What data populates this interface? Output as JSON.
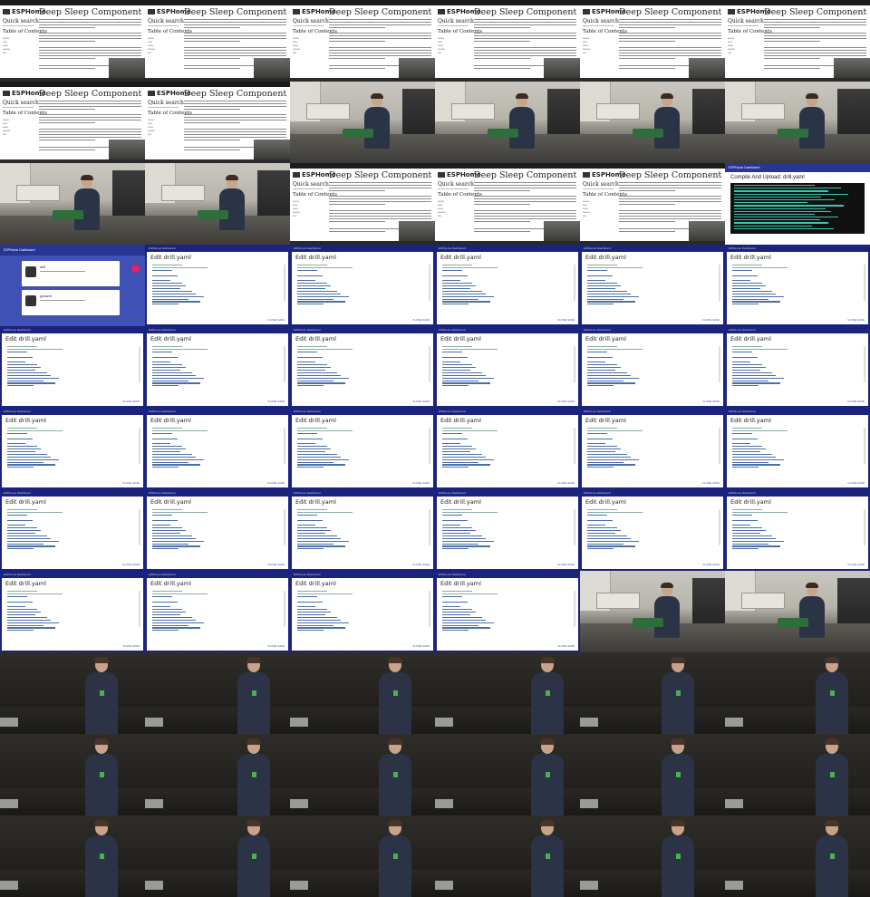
{
  "grid": {
    "columns": 6,
    "rows": 11
  },
  "labels": {
    "esphome_logo": "ESPHome",
    "docs_title": "Deep Sleep Component",
    "quick_search": "Quick search",
    "table_of_contents": "Table of Contents",
    "compile_title": "Compile And Upload: drill.yaml",
    "editor_title": "Edit drill.yaml",
    "dashboard_title": "ESPHome Dashboard",
    "device_1": "drill",
    "device_2": "ppower",
    "editor_buttons": "CLOSE   SAVE"
  },
  "tiles": [
    "docs",
    "docs",
    "docs",
    "docs",
    "docs",
    "docs",
    "docs",
    "docs",
    "room",
    "room",
    "room",
    "room",
    "room",
    "room",
    "docs",
    "docs",
    "docs",
    "compile",
    "dashboard",
    "edit",
    "edit",
    "edit",
    "edit",
    "edit",
    "edit",
    "edit",
    "edit",
    "edit",
    "edit",
    "edit",
    "edit",
    "edit",
    "edit",
    "edit",
    "edit",
    "edit",
    "edit",
    "edit",
    "edit",
    "edit",
    "edit",
    "edit",
    "edit",
    "edit",
    "edit",
    "edit",
    "room",
    "room",
    "talk",
    "talk",
    "talk",
    "talk",
    "talk",
    "talk",
    "talk",
    "talk",
    "talk",
    "talk",
    "talk",
    "talk",
    "talk",
    "talk",
    "talk",
    "talk",
    "talk",
    "talk"
  ]
}
